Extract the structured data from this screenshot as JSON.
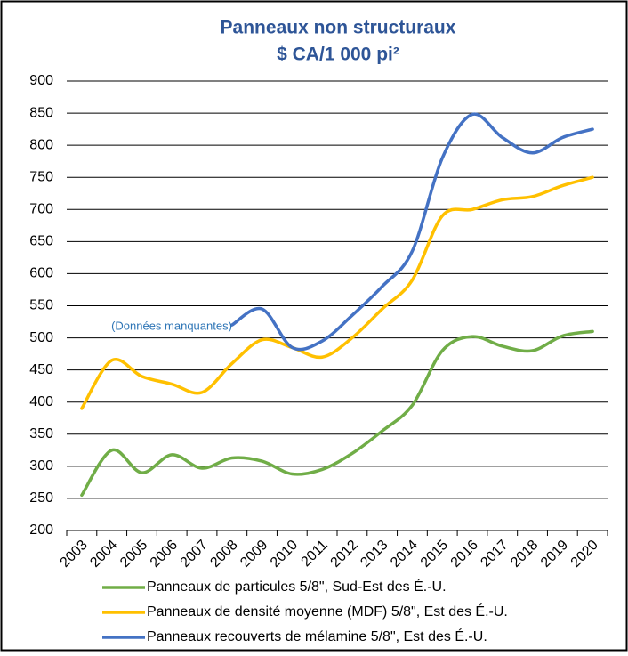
{
  "chart_data": {
    "type": "line",
    "title": "Panneaux non structuraux",
    "subtitle": "$ CA/1 000 pi²",
    "categories": [
      "2003",
      "2004",
      "2005",
      "2006",
      "2007",
      "2008",
      "2009",
      "2010",
      "2011",
      "2012",
      "2013",
      "2014",
      "2015",
      "2016",
      "2017",
      "2018",
      "2019",
      "2020"
    ],
    "series": [
      {
        "name": "Panneaux de particules 5/8\", Sud-Est des É.-U.",
        "color": "#70ad47",
        "values": [
          255,
          325,
          290,
          318,
          297,
          313,
          308,
          288,
          295,
          320,
          355,
          395,
          480,
          502,
          487,
          480,
          503,
          510
        ]
      },
      {
        "name": "Panneaux de densité moyenne (MDF) 5/8\", Est des É.-U.",
        "color": "#ffc000",
        "values": [
          390,
          465,
          440,
          428,
          415,
          460,
          497,
          485,
          470,
          500,
          545,
          590,
          690,
          700,
          715,
          720,
          737,
          750
        ]
      },
      {
        "name": "Panneaux recouverts de mélamine 5/8\", Est des É.-U.",
        "color": "#4472c4",
        "values": [
          null,
          null,
          null,
          null,
          null,
          520,
          545,
          485,
          495,
          535,
          580,
          635,
          780,
          848,
          812,
          788,
          812,
          825
        ]
      }
    ],
    "annotation": "(Données manquantes)",
    "ylim": [
      200,
      900
    ],
    "yticks": [
      200,
      250,
      300,
      350,
      400,
      450,
      500,
      550,
      600,
      650,
      700,
      750,
      800,
      850,
      900
    ],
    "grid": true
  }
}
